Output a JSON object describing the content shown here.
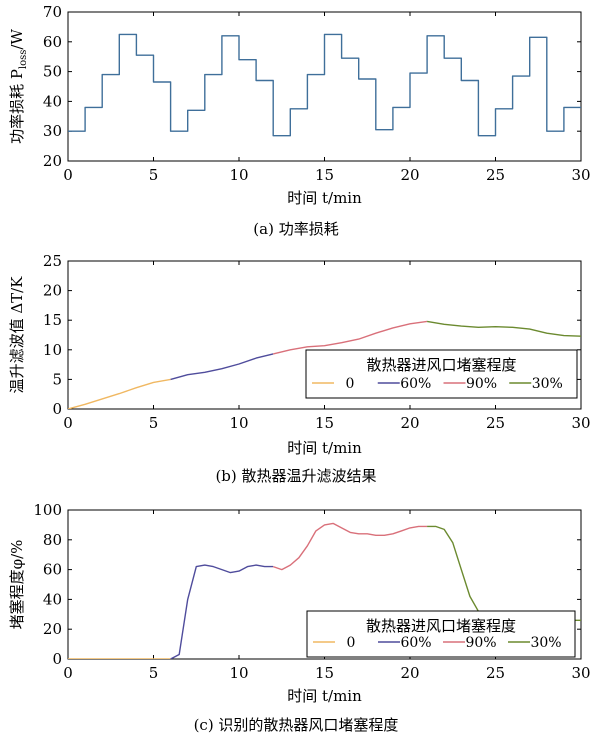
{
  "chart_data": [
    {
      "type": "line",
      "caption": "(a) 功率损耗",
      "ylabel": "功率损耗 P",
      "ylabel_sub": "loss",
      "ylabel_unit": "/W",
      "xlabel": "时间 t/min",
      "xlim": [
        0,
        30
      ],
      "ylim": [
        20,
        70
      ],
      "xticks": [
        "0",
        "5",
        "10",
        "15",
        "20",
        "25",
        "30"
      ],
      "yticks": [
        "20",
        "30",
        "40",
        "50",
        "60",
        "70"
      ],
      "color": "#3f6f9a",
      "series": [
        {
          "x": [
            0,
            1,
            1,
            2,
            2,
            3,
            3,
            4,
            4,
            5,
            5,
            6,
            6,
            7,
            7,
            8,
            8,
            9,
            9,
            10,
            10,
            11,
            11,
            12,
            12,
            13,
            13,
            14,
            14,
            15,
            15,
            16,
            16,
            17,
            17,
            18,
            18,
            19,
            19,
            20,
            20,
            21,
            21,
            22,
            22,
            23,
            23,
            24,
            24,
            25,
            25,
            26,
            26,
            27,
            27,
            28,
            28,
            29,
            29,
            30
          ],
          "y": [
            30,
            30,
            38,
            38,
            49,
            49,
            62.5,
            62.5,
            55.5,
            55.5,
            46.5,
            46.5,
            30,
            30,
            37,
            37,
            49,
            49,
            62,
            62,
            54,
            54,
            47,
            47,
            28.5,
            28.5,
            37.5,
            37.5,
            49,
            49,
            62.5,
            62.5,
            54.5,
            54.5,
            47.5,
            47.5,
            30.5,
            30.5,
            38,
            38,
            49.5,
            49.5,
            62,
            62,
            54.5,
            54.5,
            47,
            47,
            28.5,
            28.5,
            37.5,
            37.5,
            48.5,
            48.5,
            61.5,
            61.5,
            30,
            30,
            38,
            38
          ]
        }
      ]
    },
    {
      "type": "line",
      "caption": "(b) 散热器温升滤波结果",
      "ylabel": "温升滤波值 ΔT/K",
      "xlabel": "时间 t/min",
      "xlim": [
        0,
        30
      ],
      "ylim": [
        0,
        25
      ],
      "xticks": [
        "0",
        "5",
        "10",
        "15",
        "20",
        "25",
        "30"
      ],
      "yticks": [
        "0",
        "5",
        "10",
        "15",
        "20",
        "25"
      ],
      "legend_title": "散热器进风口堵塞程度",
      "legend_position": "lower-right",
      "series": [
        {
          "name": "0",
          "color": "#f0b862",
          "x": [
            0,
            1,
            2,
            3,
            4,
            5,
            6
          ],
          "y": [
            0,
            0.8,
            1.7,
            2.6,
            3.6,
            4.5,
            5.0
          ]
        },
        {
          "name": "60%",
          "color": "#4f4c9c",
          "x": [
            6,
            7,
            8,
            9,
            10,
            11,
            12
          ],
          "y": [
            5.0,
            5.8,
            6.2,
            6.8,
            7.6,
            8.6,
            9.3
          ]
        },
        {
          "name": "90%",
          "color": "#d9707a",
          "x": [
            12,
            13,
            14,
            15,
            16,
            17,
            18,
            19,
            20,
            21
          ],
          "y": [
            9.3,
            10.0,
            10.5,
            10.7,
            11.2,
            11.8,
            12.8,
            13.7,
            14.4,
            14.8
          ]
        },
        {
          "name": "30%",
          "color": "#6b8a2f",
          "x": [
            21,
            22,
            23,
            24,
            25,
            26,
            27,
            28,
            29,
            30
          ],
          "y": [
            14.8,
            14.3,
            14.0,
            13.8,
            13.9,
            13.8,
            13.5,
            12.8,
            12.4,
            12.3
          ]
        }
      ]
    },
    {
      "type": "line",
      "caption": "(c) 识别的散热器风口堵塞程度",
      "ylabel": "堵塞程度φ/%",
      "xlabel": "时间 t/min",
      "xlim": [
        0,
        30
      ],
      "ylim": [
        0,
        100
      ],
      "xticks": [
        "0",
        "5",
        "10",
        "15",
        "20",
        "25",
        "30"
      ],
      "yticks": [
        "0",
        "20",
        "40",
        "60",
        "80",
        "100"
      ],
      "legend_title": "散热器进风口堵塞程度",
      "legend_position": "lower-right",
      "series": [
        {
          "name": "0",
          "color": "#f0b862",
          "x": [
            0,
            1,
            2,
            3,
            4,
            5,
            6
          ],
          "y": [
            0,
            0,
            0,
            0,
            0,
            0,
            0
          ]
        },
        {
          "name": "60%",
          "color": "#4f4c9c",
          "x": [
            6,
            6.5,
            7,
            7.5,
            8,
            8.5,
            9,
            9.5,
            10,
            10.5,
            11,
            11.5,
            12
          ],
          "y": [
            0,
            3,
            40,
            62,
            63,
            62,
            60,
            58,
            59,
            62,
            63,
            62,
            62
          ]
        },
        {
          "name": "90%",
          "color": "#d9707a",
          "x": [
            12,
            12.5,
            13,
            13.5,
            14,
            14.5,
            15,
            15.5,
            16,
            16.5,
            17,
            17.5,
            18,
            18.5,
            19,
            19.5,
            20,
            20.5,
            21
          ],
          "y": [
            62,
            60,
            63,
            68,
            76,
            86,
            90,
            91,
            88,
            85,
            84,
            84,
            83,
            83,
            84,
            86,
            88,
            89,
            89
          ]
        },
        {
          "name": "30%",
          "color": "#6b8a2f",
          "x": [
            21,
            21.5,
            22,
            22.5,
            23,
            23.5,
            24,
            24.5,
            25,
            26,
            27,
            28,
            28.5,
            29,
            29.5,
            30
          ],
          "y": [
            89,
            89,
            87,
            78,
            60,
            42,
            32,
            28,
            27,
            28,
            28,
            29,
            30,
            28,
            26,
            26
          ]
        }
      ]
    }
  ]
}
